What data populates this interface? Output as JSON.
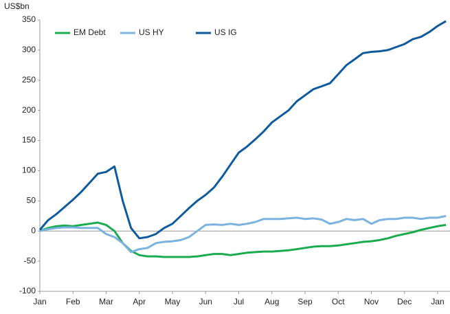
{
  "chart_data": {
    "type": "line",
    "y_axis_label": "US$bn",
    "categories": [
      "Jan",
      null,
      null,
      null,
      "Feb",
      null,
      null,
      null,
      "Mar",
      null,
      null,
      null,
      "Apr",
      null,
      null,
      null,
      "May",
      null,
      null,
      null,
      "Jun",
      null,
      null,
      null,
      "Jul",
      null,
      null,
      null,
      "Aug",
      null,
      null,
      null,
      "Sep",
      null,
      null,
      null,
      "Oct",
      null,
      null,
      null,
      "Nov",
      null,
      null,
      null,
      "Dec",
      null,
      null,
      null,
      "Jan",
      null
    ],
    "series": [
      {
        "name": "EM Debt",
        "color": "#1aab4f",
        "values": [
          0,
          5,
          8,
          9,
          8,
          10,
          12,
          14,
          10,
          0,
          -20,
          -33,
          -40,
          -42,
          -42,
          -43,
          -43,
          -43,
          -43,
          -42,
          -40,
          -38,
          -38,
          -40,
          -38,
          -36,
          -35,
          -34,
          -34,
          -33,
          -32,
          -30,
          -28,
          -26,
          -25,
          -25,
          -24,
          -22,
          -20,
          -18,
          -17,
          -15,
          -12,
          -8,
          -5,
          -2,
          2,
          5,
          8,
          10
        ]
      },
      {
        "name": "US HY",
        "color": "#7ab3e0",
        "values": [
          0,
          3,
          5,
          6,
          6,
          5,
          5,
          5,
          -5,
          -10,
          -20,
          -35,
          -30,
          -28,
          -20,
          -18,
          -17,
          -15,
          -10,
          0,
          10,
          11,
          10,
          12,
          10,
          12,
          15,
          20,
          20,
          20,
          21,
          22,
          20,
          21,
          19,
          12,
          15,
          20,
          18,
          20,
          12,
          18,
          20,
          20,
          22,
          22,
          20,
          22,
          22,
          25
        ]
      },
      {
        "name": "US IG",
        "color": "#0e5a9c",
        "values": [
          2,
          18,
          28,
          40,
          52,
          65,
          80,
          95,
          98,
          107,
          50,
          5,
          -12,
          -10,
          -5,
          5,
          12,
          25,
          38,
          50,
          60,
          72,
          90,
          110,
          130,
          140,
          152,
          165,
          180,
          190,
          200,
          215,
          225,
          235,
          240,
          245,
          260,
          275,
          285,
          295,
          297,
          298,
          300,
          305,
          310,
          318,
          322,
          330,
          340,
          348
        ]
      }
    ],
    "ylim": [
      -100,
      350
    ],
    "yticks": [
      -100,
      -50,
      0,
      50,
      100,
      150,
      200,
      250,
      300,
      350
    ],
    "grid": false,
    "legend": "top-left"
  }
}
